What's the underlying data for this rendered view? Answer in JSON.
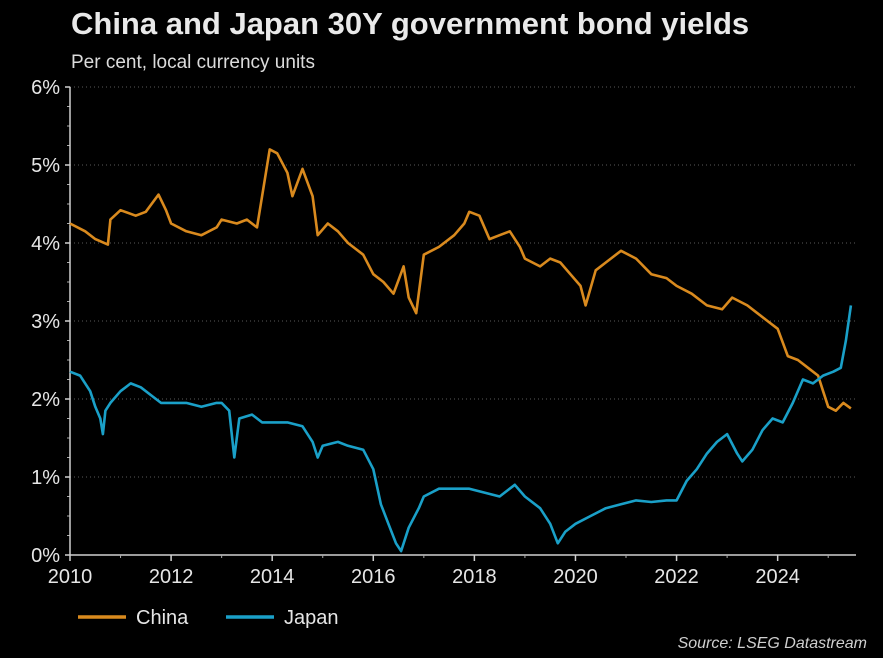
{
  "title": "China and Japan 30Y government bond yields",
  "subtitle": "Per cent, local currency units",
  "source": "Source: LSEG Datastream",
  "chart_data": {
    "type": "line",
    "x_unit": "year",
    "xlim": [
      2010,
      2025.55
    ],
    "ylim": [
      0,
      6
    ],
    "x_ticks": [
      2010,
      2012,
      2014,
      2016,
      2018,
      2020,
      2022,
      2024
    ],
    "x_tick_labels": [
      "2010",
      "2012",
      "2014",
      "2016",
      "2018",
      "2020",
      "2022",
      "2024"
    ],
    "y_ticks": [
      0,
      1,
      2,
      3,
      4,
      5,
      6
    ],
    "y_tick_labels": [
      "0%",
      "1%",
      "2%",
      "3%",
      "4%",
      "5%",
      "6%"
    ],
    "grid": "horizontal dotted",
    "legend_position": "bottom-left",
    "series": [
      {
        "name": "China",
        "color": "#d98a1e",
        "points": [
          [
            2010.0,
            4.25
          ],
          [
            2010.3,
            4.15
          ],
          [
            2010.5,
            4.05
          ],
          [
            2010.75,
            3.98
          ],
          [
            2010.8,
            4.3
          ],
          [
            2011.0,
            4.42
          ],
          [
            2011.3,
            4.35
          ],
          [
            2011.5,
            4.4
          ],
          [
            2011.75,
            4.62
          ],
          [
            2011.9,
            4.42
          ],
          [
            2012.0,
            4.25
          ],
          [
            2012.3,
            4.15
          ],
          [
            2012.6,
            4.1
          ],
          [
            2012.9,
            4.2
          ],
          [
            2013.0,
            4.3
          ],
          [
            2013.3,
            4.25
          ],
          [
            2013.5,
            4.3
          ],
          [
            2013.7,
            4.2
          ],
          [
            2013.8,
            4.6
          ],
          [
            2013.95,
            5.2
          ],
          [
            2014.1,
            5.15
          ],
          [
            2014.3,
            4.9
          ],
          [
            2014.4,
            4.6
          ],
          [
            2014.6,
            4.95
          ],
          [
            2014.8,
            4.6
          ],
          [
            2014.9,
            4.1
          ],
          [
            2015.1,
            4.25
          ],
          [
            2015.3,
            4.15
          ],
          [
            2015.5,
            4.0
          ],
          [
            2015.8,
            3.85
          ],
          [
            2016.0,
            3.6
          ],
          [
            2016.2,
            3.5
          ],
          [
            2016.4,
            3.35
          ],
          [
            2016.6,
            3.7
          ],
          [
            2016.7,
            3.3
          ],
          [
            2016.85,
            3.1
          ],
          [
            2017.0,
            3.85
          ],
          [
            2017.3,
            3.95
          ],
          [
            2017.6,
            4.1
          ],
          [
            2017.8,
            4.25
          ],
          [
            2017.9,
            4.4
          ],
          [
            2018.1,
            4.35
          ],
          [
            2018.3,
            4.05
          ],
          [
            2018.5,
            4.1
          ],
          [
            2018.7,
            4.15
          ],
          [
            2018.9,
            3.95
          ],
          [
            2019.0,
            3.8
          ],
          [
            2019.3,
            3.7
          ],
          [
            2019.5,
            3.8
          ],
          [
            2019.7,
            3.75
          ],
          [
            2019.9,
            3.6
          ],
          [
            2020.1,
            3.45
          ],
          [
            2020.2,
            3.2
          ],
          [
            2020.4,
            3.65
          ],
          [
            2020.6,
            3.75
          ],
          [
            2020.9,
            3.9
          ],
          [
            2021.2,
            3.8
          ],
          [
            2021.5,
            3.6
          ],
          [
            2021.8,
            3.55
          ],
          [
            2022.0,
            3.45
          ],
          [
            2022.3,
            3.35
          ],
          [
            2022.6,
            3.2
          ],
          [
            2022.9,
            3.15
          ],
          [
            2023.1,
            3.3
          ],
          [
            2023.4,
            3.2
          ],
          [
            2023.6,
            3.1
          ],
          [
            2023.8,
            3.0
          ],
          [
            2024.0,
            2.9
          ],
          [
            2024.2,
            2.55
          ],
          [
            2024.4,
            2.5
          ],
          [
            2024.6,
            2.4
          ],
          [
            2024.8,
            2.3
          ],
          [
            2024.9,
            2.1
          ],
          [
            2025.0,
            1.9
          ],
          [
            2025.15,
            1.85
          ],
          [
            2025.3,
            1.95
          ],
          [
            2025.45,
            1.88
          ]
        ]
      },
      {
        "name": "Japan",
        "color": "#1aa0c8",
        "points": [
          [
            2010.0,
            2.35
          ],
          [
            2010.2,
            2.3
          ],
          [
            2010.4,
            2.1
          ],
          [
            2010.5,
            1.9
          ],
          [
            2010.6,
            1.75
          ],
          [
            2010.65,
            1.55
          ],
          [
            2010.7,
            1.85
          ],
          [
            2010.8,
            1.95
          ],
          [
            2011.0,
            2.1
          ],
          [
            2011.2,
            2.2
          ],
          [
            2011.4,
            2.15
          ],
          [
            2011.6,
            2.05
          ],
          [
            2011.8,
            1.95
          ],
          [
            2012.0,
            1.95
          ],
          [
            2012.3,
            1.95
          ],
          [
            2012.6,
            1.9
          ],
          [
            2012.9,
            1.95
          ],
          [
            2013.0,
            1.95
          ],
          [
            2013.15,
            1.85
          ],
          [
            2013.25,
            1.25
          ],
          [
            2013.35,
            1.75
          ],
          [
            2013.6,
            1.8
          ],
          [
            2013.8,
            1.7
          ],
          [
            2014.0,
            1.7
          ],
          [
            2014.3,
            1.7
          ],
          [
            2014.6,
            1.65
          ],
          [
            2014.8,
            1.45
          ],
          [
            2014.9,
            1.25
          ],
          [
            2015.0,
            1.4
          ],
          [
            2015.3,
            1.45
          ],
          [
            2015.5,
            1.4
          ],
          [
            2015.8,
            1.35
          ],
          [
            2016.0,
            1.1
          ],
          [
            2016.15,
            0.65
          ],
          [
            2016.3,
            0.4
          ],
          [
            2016.45,
            0.15
          ],
          [
            2016.55,
            0.05
          ],
          [
            2016.7,
            0.35
          ],
          [
            2016.9,
            0.6
          ],
          [
            2017.0,
            0.75
          ],
          [
            2017.3,
            0.85
          ],
          [
            2017.6,
            0.85
          ],
          [
            2017.9,
            0.85
          ],
          [
            2018.2,
            0.8
          ],
          [
            2018.5,
            0.75
          ],
          [
            2018.8,
            0.9
          ],
          [
            2019.0,
            0.75
          ],
          [
            2019.3,
            0.6
          ],
          [
            2019.5,
            0.4
          ],
          [
            2019.65,
            0.15
          ],
          [
            2019.8,
            0.3
          ],
          [
            2020.0,
            0.4
          ],
          [
            2020.3,
            0.5
          ],
          [
            2020.6,
            0.6
          ],
          [
            2020.9,
            0.65
          ],
          [
            2021.2,
            0.7
          ],
          [
            2021.5,
            0.68
          ],
          [
            2021.8,
            0.7
          ],
          [
            2022.0,
            0.7
          ],
          [
            2022.2,
            0.95
          ],
          [
            2022.4,
            1.1
          ],
          [
            2022.6,
            1.3
          ],
          [
            2022.8,
            1.45
          ],
          [
            2023.0,
            1.55
          ],
          [
            2023.2,
            1.3
          ],
          [
            2023.3,
            1.2
          ],
          [
            2023.5,
            1.35
          ],
          [
            2023.7,
            1.6
          ],
          [
            2023.9,
            1.75
          ],
          [
            2024.1,
            1.7
          ],
          [
            2024.3,
            1.95
          ],
          [
            2024.5,
            2.25
          ],
          [
            2024.7,
            2.2
          ],
          [
            2024.9,
            2.3
          ],
          [
            2025.1,
            2.35
          ],
          [
            2025.25,
            2.4
          ],
          [
            2025.35,
            2.75
          ],
          [
            2025.45,
            3.2
          ]
        ]
      }
    ]
  }
}
